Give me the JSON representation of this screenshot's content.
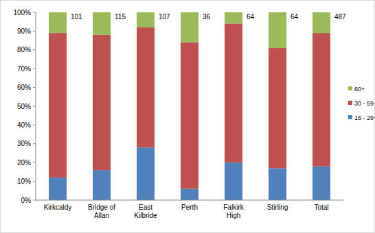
{
  "chart_data": {
    "type": "bar",
    "stacked": true,
    "categories": [
      "Kirkcaldy",
      "Bridge of Allan",
      "East Kilbride",
      "Perth",
      "Falkirk High",
      "Stirling",
      "Total"
    ],
    "series": [
      {
        "name": "16 - 29",
        "color": "#4f81bd",
        "values": [
          12,
          16,
          28,
          6,
          20,
          17,
          18
        ]
      },
      {
        "name": "30 - 59",
        "color": "#c0504d",
        "values": [
          77,
          72,
          64,
          78,
          74,
          64,
          71
        ]
      },
      {
        "name": "60+",
        "color": "#9bbb59",
        "values": [
          11,
          12,
          8,
          16,
          6,
          19,
          11
        ]
      }
    ],
    "counts": [
      101,
      115,
      107,
      36,
      64,
      64,
      487
    ],
    "ylim": [
      0,
      100
    ],
    "yticks": [
      {
        "value": 0,
        "label": "0%"
      },
      {
        "value": 10,
        "label": "10%"
      },
      {
        "value": 20,
        "label": "20%"
      },
      {
        "value": 30,
        "label": "30%"
      },
      {
        "value": 40,
        "label": "40%"
      },
      {
        "value": 50,
        "label": "50%"
      },
      {
        "value": 60,
        "label": "60%"
      },
      {
        "value": 70,
        "label": "70%"
      },
      {
        "value": 80,
        "label": "80%"
      },
      {
        "value": 90,
        "label": "90%"
      },
      {
        "value": 100,
        "label": "100%"
      }
    ],
    "grid": false,
    "legend": "right"
  }
}
